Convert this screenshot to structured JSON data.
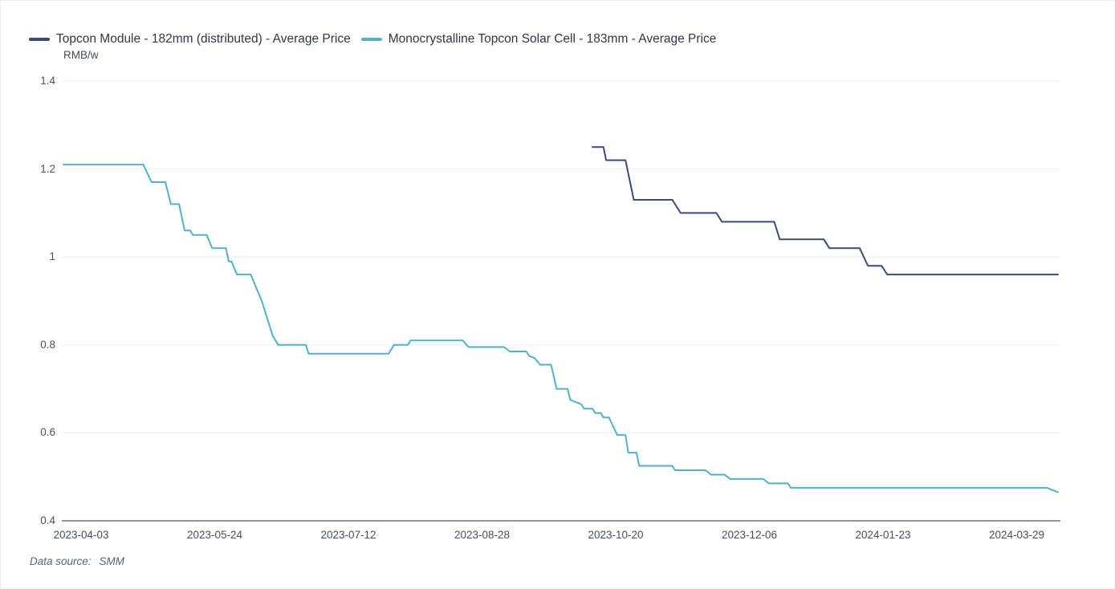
{
  "legend": {
    "items": [
      {
        "label": "Topcon Module - 182mm (distributed) - Average Price",
        "color": "#3b4a7c"
      },
      {
        "label": "Monocrystalline Topcon Solar Cell - 183mm - Average Price",
        "color": "#4fb2ca"
      }
    ]
  },
  "footer": {
    "label": "Data source:",
    "value": "SMM"
  },
  "chart_data": {
    "type": "line",
    "title": "",
    "xlabel": "",
    "ylabel": "RMB/w",
    "ylim": [
      0.4,
      1.4
    ],
    "grid": true,
    "legend_position": "top-left",
    "y_ticks": [
      [
        1.4,
        "1.4"
      ],
      [
        1.2,
        "1.2"
      ],
      [
        1,
        "1"
      ],
      [
        0.8,
        "0.8"
      ],
      [
        0.6,
        "0.6"
      ],
      [
        0.4,
        "0.4"
      ]
    ],
    "x_tick_labels": [
      "2023-04-03",
      "2023-05-24",
      "2023-07-12",
      "2023-08-28",
      "2023-10-20",
      "2023-12-06",
      "2024-01-23",
      "2024-03-29"
    ],
    "x_range": [
      "2023-04-03",
      "2024-03-29"
    ],
    "series": [
      {
        "name": "Topcon Module - 182mm (distributed) - Average Price",
        "color": "#3b4a7c",
        "points": [
          [
            "2023-10-12",
            1.25
          ],
          [
            "2023-10-16",
            1.25
          ],
          [
            "2023-10-17",
            1.22
          ],
          [
            "2023-10-24",
            1.22
          ],
          [
            "2023-10-27",
            1.13
          ],
          [
            "2023-11-10",
            1.13
          ],
          [
            "2023-11-12",
            1.11
          ],
          [
            "2023-11-13",
            1.1
          ],
          [
            "2023-11-26",
            1.1
          ],
          [
            "2023-11-28",
            1.08
          ],
          [
            "2023-12-17",
            1.08
          ],
          [
            "2023-12-19",
            1.04
          ],
          [
            "2024-01-04",
            1.04
          ],
          [
            "2024-01-06",
            1.02
          ],
          [
            "2024-01-17",
            1.02
          ],
          [
            "2024-01-20",
            0.98
          ],
          [
            "2024-01-25",
            0.98
          ],
          [
            "2024-01-27",
            0.96
          ],
          [
            "2024-03-29",
            0.96
          ]
        ]
      },
      {
        "name": "Monocrystalline Topcon Solar Cell - 183mm - Average Price",
        "color": "#4fb2ca",
        "points": [
          [
            "2023-04-03",
            1.21
          ],
          [
            "2023-05-02",
            1.21
          ],
          [
            "2023-05-05",
            1.17
          ],
          [
            "2023-05-10",
            1.17
          ],
          [
            "2023-05-12",
            1.12
          ],
          [
            "2023-05-15",
            1.12
          ],
          [
            "2023-05-17",
            1.06
          ],
          [
            "2023-05-19",
            1.06
          ],
          [
            "2023-05-20",
            1.05
          ],
          [
            "2023-05-25",
            1.05
          ],
          [
            "2023-05-27",
            1.02
          ],
          [
            "2023-06-01",
            1.02
          ],
          [
            "2023-06-02",
            0.99
          ],
          [
            "2023-06-03",
            0.99
          ],
          [
            "2023-06-05",
            0.96
          ],
          [
            "2023-06-10",
            0.96
          ],
          [
            "2023-06-12",
            0.93
          ],
          [
            "2023-06-14",
            0.9
          ],
          [
            "2023-06-16",
            0.86
          ],
          [
            "2023-06-18",
            0.82
          ],
          [
            "2023-06-20",
            0.8
          ],
          [
            "2023-06-30",
            0.8
          ],
          [
            "2023-07-01",
            0.78
          ],
          [
            "2023-07-30",
            0.78
          ],
          [
            "2023-08-01",
            0.8
          ],
          [
            "2023-08-06",
            0.8
          ],
          [
            "2023-08-07",
            0.81
          ],
          [
            "2023-08-26",
            0.81
          ],
          [
            "2023-08-28",
            0.795
          ],
          [
            "2023-09-10",
            0.795
          ],
          [
            "2023-09-12",
            0.785
          ],
          [
            "2023-09-18",
            0.785
          ],
          [
            "2023-09-19",
            0.775
          ],
          [
            "2023-09-21",
            0.77
          ],
          [
            "2023-09-23",
            0.755
          ],
          [
            "2023-09-27",
            0.755
          ],
          [
            "2023-09-29",
            0.7
          ],
          [
            "2023-10-03",
            0.7
          ],
          [
            "2023-10-04",
            0.675
          ],
          [
            "2023-10-08",
            0.665
          ],
          [
            "2023-10-09",
            0.655
          ],
          [
            "2023-10-12",
            0.655
          ],
          [
            "2023-10-13",
            0.645
          ],
          [
            "2023-10-15",
            0.645
          ],
          [
            "2023-10-16",
            0.635
          ],
          [
            "2023-10-18",
            0.635
          ],
          [
            "2023-10-21",
            0.595
          ],
          [
            "2023-10-24",
            0.595
          ],
          [
            "2023-10-25",
            0.555
          ],
          [
            "2023-10-28",
            0.555
          ],
          [
            "2023-10-29",
            0.525
          ],
          [
            "2023-11-10",
            0.525
          ],
          [
            "2023-11-11",
            0.515
          ],
          [
            "2023-11-22",
            0.515
          ],
          [
            "2023-11-24",
            0.505
          ],
          [
            "2023-11-29",
            0.505
          ],
          [
            "2023-12-01",
            0.495
          ],
          [
            "2023-12-13",
            0.495
          ],
          [
            "2023-12-15",
            0.485
          ],
          [
            "2023-12-22",
            0.485
          ],
          [
            "2023-12-23",
            0.475
          ],
          [
            "2024-03-25",
            0.475
          ],
          [
            "2024-03-29",
            0.465
          ]
        ]
      }
    ]
  }
}
